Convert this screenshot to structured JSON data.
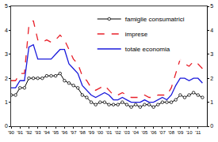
{
  "chart_data": {
    "type": "line",
    "x": [
      1990,
      1990.5,
      1991,
      1991.5,
      1992,
      1992.5,
      1993,
      1993.5,
      1994,
      1994.5,
      1995,
      1995.5,
      1996,
      1996.5,
      1997,
      1997.5,
      1998,
      1998.5,
      1999,
      1999.5,
      2000,
      2000.5,
      2001,
      2001.5,
      2002,
      2002.5,
      2003,
      2003.5,
      2004,
      2004.5,
      2005,
      2005.5,
      2006,
      2006.5,
      2007,
      2007.5,
      2008,
      2008.5,
      2009,
      2009.5,
      2010,
      2010.5,
      2011,
      2011.5
    ],
    "series": [
      {
        "name": "famiglie consumatrici",
        "color": "#000000",
        "marker": "circle",
        "line_style": "solid",
        "values": [
          1.3,
          1.3,
          1.6,
          1.6,
          2.0,
          2.0,
          2.0,
          2.0,
          2.1,
          2.1,
          2.1,
          2.2,
          1.9,
          1.8,
          1.7,
          1.6,
          1.3,
          1.2,
          1.0,
          0.9,
          1.0,
          1.0,
          0.9,
          0.9,
          0.9,
          1.0,
          0.9,
          0.8,
          0.9,
          0.8,
          0.9,
          0.9,
          0.8,
          0.9,
          1.0,
          1.0,
          1.0,
          1.1,
          1.3,
          1.2,
          1.3,
          1.4,
          1.3,
          1.2
        ]
      },
      {
        "name": "imprese",
        "color": "#e8202a",
        "line_style": "dash",
        "values": [
          1.9,
          1.9,
          2.2,
          2.2,
          4.2,
          4.4,
          3.6,
          3.5,
          3.6,
          3.5,
          3.6,
          3.8,
          3.6,
          3.2,
          2.8,
          2.6,
          2.1,
          1.9,
          1.6,
          1.5,
          1.6,
          1.7,
          1.5,
          1.3,
          1.3,
          1.4,
          1.3,
          1.2,
          1.2,
          1.2,
          1.3,
          1.2,
          1.2,
          1.3,
          1.3,
          1.3,
          1.6,
          2.2,
          2.8,
          2.6,
          2.5,
          2.7,
          2.6,
          2.4
        ]
      },
      {
        "name": "totale economia",
        "color": "#1a1adb",
        "line_style": "solid",
        "values": [
          1.6,
          1.6,
          1.9,
          1.9,
          3.3,
          3.4,
          2.8,
          2.8,
          2.8,
          2.8,
          3.0,
          3.2,
          3.2,
          2.6,
          2.4,
          2.2,
          1.7,
          1.5,
          1.3,
          1.2,
          1.3,
          1.4,
          1.3,
          1.1,
          1.1,
          1.2,
          1.1,
          1.0,
          1.0,
          1.0,
          1.1,
          1.0,
          1.0,
          1.1,
          1.2,
          1.1,
          1.3,
          1.7,
          2.0,
          2.0,
          1.9,
          2.0,
          2.0,
          1.8
        ]
      }
    ],
    "xlim": [
      1990,
      2012
    ],
    "xticks": [
      {
        "value": 1990,
        "label": "'90"
      },
      {
        "value": 1991,
        "label": "'91"
      },
      {
        "value": 1992,
        "label": "'92"
      },
      {
        "value": 1993,
        "label": "'93"
      },
      {
        "value": 1994,
        "label": "'94"
      },
      {
        "value": 1995,
        "label": "'95"
      },
      {
        "value": 1996,
        "label": "'96"
      },
      {
        "value": 1997,
        "label": "'97"
      },
      {
        "value": 1998,
        "label": "'98"
      },
      {
        "value": 1999,
        "label": "'99"
      },
      {
        "value": 2000,
        "label": "'00"
      },
      {
        "value": 2001,
        "label": "'01"
      },
      {
        "value": 2002,
        "label": "'02"
      },
      {
        "value": 2003,
        "label": "'03"
      },
      {
        "value": 2004,
        "label": "'04"
      },
      {
        "value": 2005,
        "label": "'05"
      },
      {
        "value": 2006,
        "label": "'06"
      },
      {
        "value": 2007,
        "label": "'07"
      },
      {
        "value": 2008,
        "label": "'08"
      },
      {
        "value": 2009,
        "label": "'09"
      },
      {
        "value": 2010,
        "label": "'10"
      },
      {
        "value": 2011,
        "label": "'11"
      }
    ],
    "ylim": [
      0,
      5
    ],
    "yticks": [
      0,
      1,
      2,
      3,
      4,
      5
    ],
    "y2lim": [
      0,
      5
    ],
    "y2ticks": [
      0,
      1,
      2,
      3,
      4,
      5
    ],
    "grid": false,
    "legend": "top"
  }
}
